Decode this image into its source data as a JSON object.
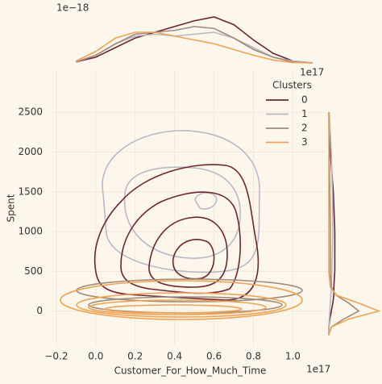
{
  "chart_data": {
    "type": "kde-joint",
    "x_label": "Customer_For_How_Much_Time",
    "y_label": "Spent",
    "x_offset_label": "1e17",
    "xlim": [
      -0.22,
      1.17
    ],
    "ylim": [
      -430,
      3020
    ],
    "xticks": [
      {
        "value": -0.2,
        "label": "−0.2"
      },
      {
        "value": 0,
        "label": "0.0"
      },
      0.2,
      0.4,
      0.6,
      0.8,
      {
        "value": 1.0,
        "label": "1.0"
      }
    ],
    "yticks": [
      0,
      500,
      1000,
      1500,
      2000,
      2500
    ],
    "grid": true,
    "legend_title": "Clusters",
    "legend_position": "upper right",
    "series": [
      {
        "name": "0",
        "color": "#6e2532"
      },
      {
        "name": "1",
        "color": "#b8b9c6"
      },
      {
        "name": "2",
        "color": "#9f8b7b"
      },
      {
        "name": "3",
        "color": "#f0a354"
      }
    ],
    "top_marginal": {
      "offset_label": "1e−18",
      "x_offset_label": "1e17",
      "ylim": [
        0,
        3.2
      ],
      "x": [
        -0.1,
        0,
        0.1,
        0.2,
        0.3,
        0.4,
        0.5,
        0.6,
        0.7,
        0.8,
        0.9,
        1.0,
        1.1
      ],
      "series": [
        {
          "values": [
            0.05,
            0.3,
            0.8,
            1.3,
            1.6,
            1.9,
            2.2,
            2.4,
            2.0,
            1.2,
            0.5,
            0.1,
            0
          ]
        },
        {
          "values": [
            0.05,
            0.4,
            1.0,
            1.4,
            1.5,
            1.4,
            1.5,
            1.6,
            1.3,
            0.8,
            0.3,
            0.1,
            0
          ]
        },
        {
          "values": [
            0.05,
            0.4,
            1.0,
            1.5,
            1.6,
            1.7,
            1.9,
            1.8,
            1.3,
            0.7,
            0.3,
            0.05,
            0
          ]
        },
        {
          "values": [
            0.1,
            0.6,
            1.3,
            1.6,
            1.6,
            1.4,
            1.2,
            1.0,
            0.7,
            0.4,
            0.15,
            0.02,
            0
          ]
        }
      ]
    },
    "right_marginal": {
      "xlim": [
        0,
        1
      ],
      "y": [
        -300,
        -200,
        -100,
        0,
        100,
        200,
        300,
        500,
        1000,
        1500,
        2000,
        2500
      ],
      "series": [
        {
          "values": [
            0,
            0,
            0.02,
            0.05,
            0.08,
            0.1,
            0.1,
            0.12,
            0.12,
            0.09,
            0.03,
            0
          ]
        },
        {
          "values": [
            0,
            0,
            0.01,
            0.02,
            0.03,
            0.04,
            0.05,
            0.06,
            0.08,
            0.07,
            0.05,
            0.01
          ]
        },
        {
          "values": [
            0,
            0.05,
            0.3,
            0.6,
            0.4,
            0.15,
            0.05,
            0.03,
            0.03,
            0.02,
            0.01,
            0
          ]
        },
        {
          "values": [
            0,
            0.05,
            0.4,
            1.0,
            0.6,
            0.15,
            0.03,
            0,
            0,
            0,
            0,
            0
          ]
        }
      ]
    }
  }
}
